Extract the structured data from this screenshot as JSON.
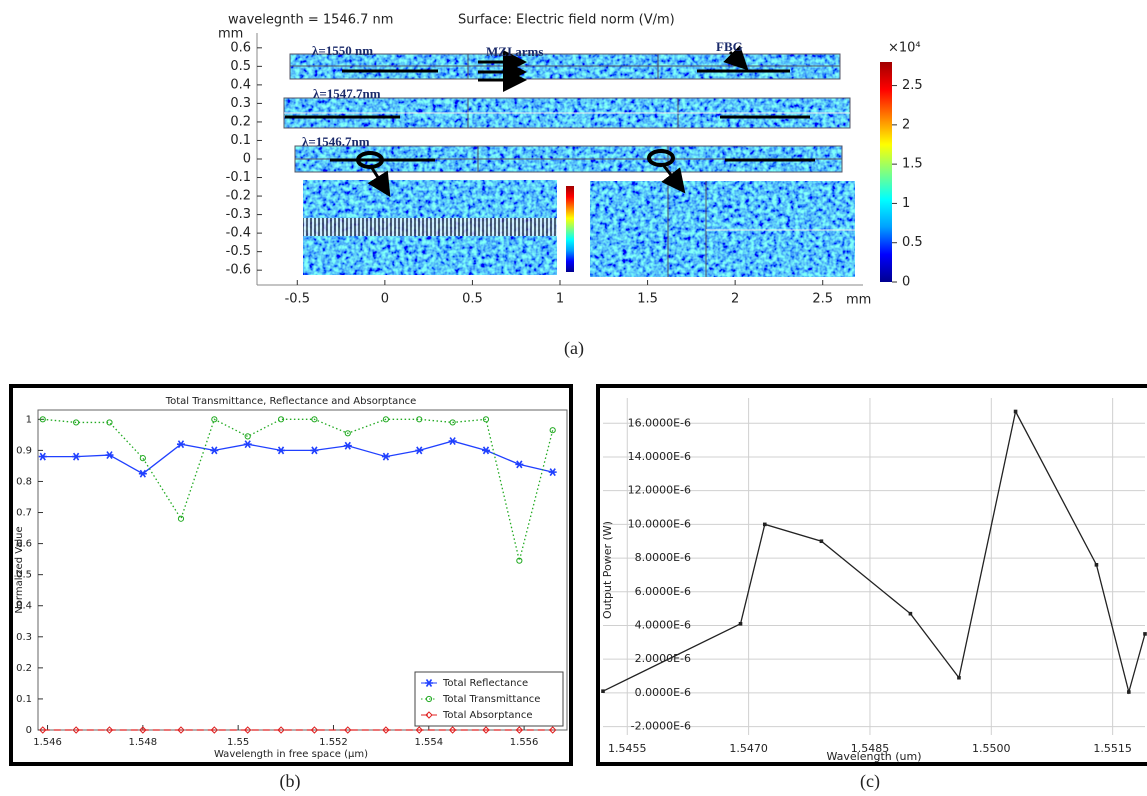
{
  "chart_data": [
    {
      "type": "field",
      "title": "wavelegnth = 1546.7 nm",
      "subtitle": "Surface: Electric field norm (V/m)",
      "x_label": "mm",
      "y_label": "mm",
      "xlim": [
        -0.73,
        2.73
      ],
      "xticks": [
        -0.5,
        0,
        0.5,
        1,
        1.5,
        2,
        2.5
      ],
      "ylim": [
        -0.68,
        0.68
      ],
      "yticks": [
        -0.6,
        -0.5,
        -0.4,
        -0.3,
        -0.2,
        -0.1,
        0,
        0.1,
        0.2,
        0.3,
        0.4,
        0.5,
        0.6
      ],
      "annotations": [
        "λ=1550 nm",
        "MZI arms",
        "FBG",
        "λ=1547.7nm",
        "λ=1546.7nm"
      ],
      "colorbar": {
        "label": "×10⁴",
        "lim": [
          0,
          2.8
        ],
        "ticks": [
          0,
          0.5,
          1,
          1.5,
          2,
          2.5
        ],
        "colors": [
          "#00008f",
          "#0000ff",
          "#00a0ff",
          "#00ffff",
          "#80ff80",
          "#ffff00",
          "#ff8000",
          "#ff0000",
          "#a00000"
        ]
      },
      "panel_label": "(a)"
    },
    {
      "type": "line",
      "title": "Total Transmittance, Reflectance and Absorptance",
      "x_label": "Wavelength in free space (µm)",
      "y_label": "Normalized Value",
      "x": [
        1.5459,
        1.5466,
        1.5473,
        1.548,
        1.5488,
        1.5495,
        1.5502,
        1.5509,
        1.5516,
        1.5523,
        1.5531,
        1.5538,
        1.5545,
        1.5552,
        1.5559,
        1.5566
      ],
      "series": [
        {
          "name": "Total Reflectance",
          "color": "#2040ff",
          "marker": "star",
          "dash": "solid",
          "values": [
            0.88,
            0.88,
            0.885,
            0.825,
            0.92,
            0.9,
            0.92,
            0.9,
            0.9,
            0.915,
            0.88,
            0.9,
            0.93,
            0.9,
            0.855,
            0.83
          ]
        },
        {
          "name": "Total Transmittance",
          "color": "#22aa22",
          "marker": "circle",
          "dash": "dotted",
          "values": [
            1,
            0.99,
            0.99,
            0.875,
            0.68,
            1,
            0.945,
            1,
            1,
            0.955,
            1,
            1,
            0.99,
            1,
            0.545,
            0.965
          ]
        },
        {
          "name": "Total Absorptance",
          "color": "#e02020",
          "marker": "diamond",
          "dash": "dashed",
          "values": [
            0,
            0,
            0,
            0,
            0,
            0,
            0,
            0,
            0,
            0,
            0,
            0,
            0,
            0,
            0,
            0
          ]
        }
      ],
      "xlim": [
        1.5458,
        1.5569
      ],
      "xticks": [
        1.546,
        1.548,
        1.55,
        1.552,
        1.554,
        1.556
      ],
      "ylim": [
        0,
        1.03
      ],
      "yticks": [
        0,
        0.1,
        0.2,
        0.3,
        0.4,
        0.5,
        0.6,
        0.7,
        0.8,
        0.9,
        1
      ],
      "grid": false,
      "legend": "lower right",
      "panel_label": "(b)"
    },
    {
      "type": "line",
      "x_label": "Wavelength (um)",
      "y_label": "Output Power (W)",
      "x": [
        1.5452,
        1.5469,
        1.5472,
        1.5479,
        1.549,
        1.5496,
        1.5503,
        1.5513,
        1.5517,
        1.5519
      ],
      "values": [
        1e-07,
        4.1e-06,
        1e-05,
        9e-06,
        4.7e-06,
        9e-07,
        1.67e-05,
        7.6e-06,
        5e-08,
        3.5e-06
      ],
      "color": "#222222",
      "marker": "square",
      "xlim": [
        1.5452,
        1.5519
      ],
      "xticks": [
        1.5455,
        {
          "value": 1.547,
          "label": "1.5470"
        },
        1.5485,
        {
          "value": 1.55,
          "label": "1.5500"
        },
        1.5515
      ],
      "ylim": [
        -2.5e-06,
        1.75e-05
      ],
      "yticks": [
        {
          "value": -2e-06,
          "label": "-2.0000E-6"
        },
        {
          "value": 0,
          "label": "0.0000E-6"
        },
        {
          "value": 2e-06,
          "label": "2.0000E-6"
        },
        {
          "value": 4e-06,
          "label": "4.0000E-6"
        },
        {
          "value": 6e-06,
          "label": "6.0000E-6"
        },
        {
          "value": 8e-06,
          "label": "8.0000E-6"
        },
        {
          "value": 1e-05,
          "label": "10.0000E-6"
        },
        {
          "value": 1.2e-05,
          "label": "12.0000E-6"
        },
        {
          "value": 1.4e-05,
          "label": "14.0000E-6"
        },
        {
          "value": 1.6e-05,
          "label": "16.0000E-6"
        }
      ],
      "grid": true,
      "panel_label": "(c)"
    }
  ]
}
